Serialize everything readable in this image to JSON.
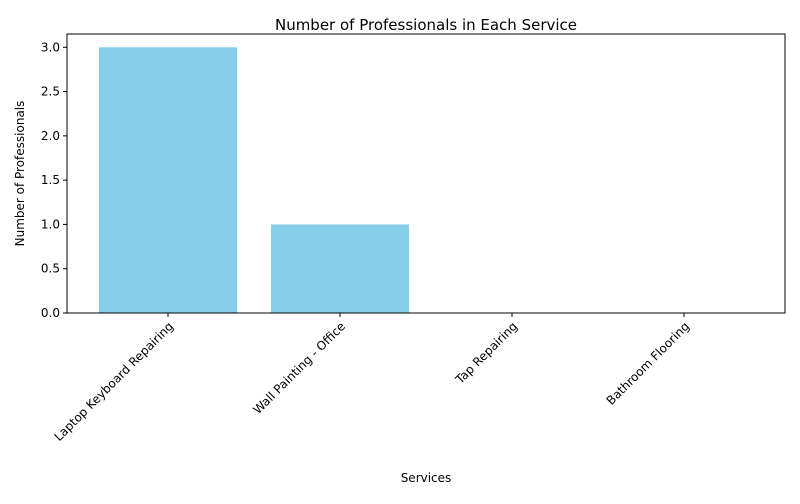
{
  "chart_data": {
    "type": "bar",
    "title": "Number of Professionals in Each Service",
    "xlabel": "Services",
    "ylabel": "Number of Professionals",
    "categories": [
      "Laptop Keyboard Repairing",
      "Wall Painting - Office",
      "Tap Repairing",
      "Bathroom Flooring"
    ],
    "values": [
      3,
      1,
      0,
      0
    ],
    "ylim": [
      0,
      3.15
    ],
    "yticks": [
      "0.0",
      "0.5",
      "1.0",
      "1.5",
      "2.0",
      "2.5",
      "3.0"
    ],
    "bar_color": "#87ceeb",
    "grid": false,
    "legend": false
  }
}
